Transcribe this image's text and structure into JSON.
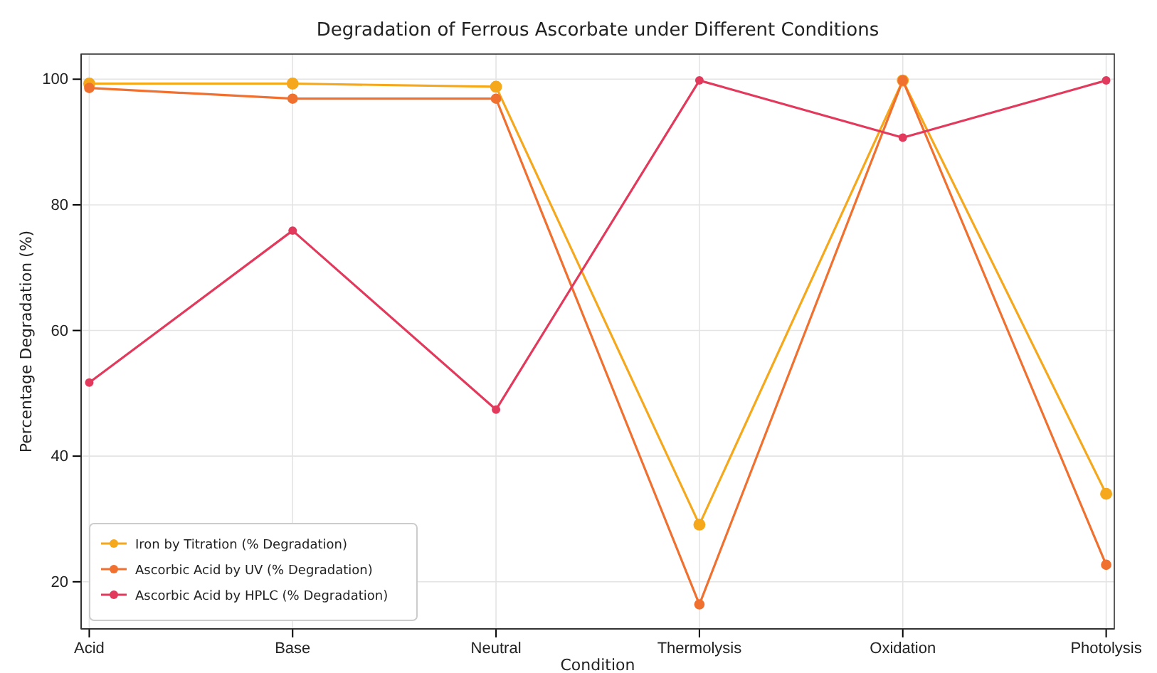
{
  "chart_data": {
    "type": "line",
    "title": "Degradation of Ferrous Ascorbate under Different Conditions",
    "xlabel": "Condition",
    "ylabel": "Percentage Degradation (%)",
    "categories": [
      "Acid",
      "Base",
      "Neutral",
      "Thermolysis",
      "Oxidation",
      "Photolysis"
    ],
    "series": [
      {
        "name": "Iron by Titration (% Degradation)",
        "color": "#f5a81c",
        "values": [
          99.3,
          99.3,
          98.8,
          29.1,
          99.8,
          34
        ]
      },
      {
        "name": "Ascorbic Acid by UV (% Degradation)",
        "color": "#f07030",
        "values": [
          98.6,
          96.9,
          96.9,
          16.4,
          99.8,
          22.7
        ]
      },
      {
        "name": "Ascorbic Acid by HPLC (% Degradation)",
        "color": "#e23a5c",
        "values": [
          51.7,
          75.9,
          47.4,
          99.8,
          90.7,
          99.8
        ]
      }
    ],
    "ylim": [
      12.5,
      104
    ],
    "yticks": [
      20,
      40,
      60,
      80,
      100
    ],
    "grid": true,
    "legend": "bottom left",
    "marker": "circle",
    "line_style": "solid"
  }
}
